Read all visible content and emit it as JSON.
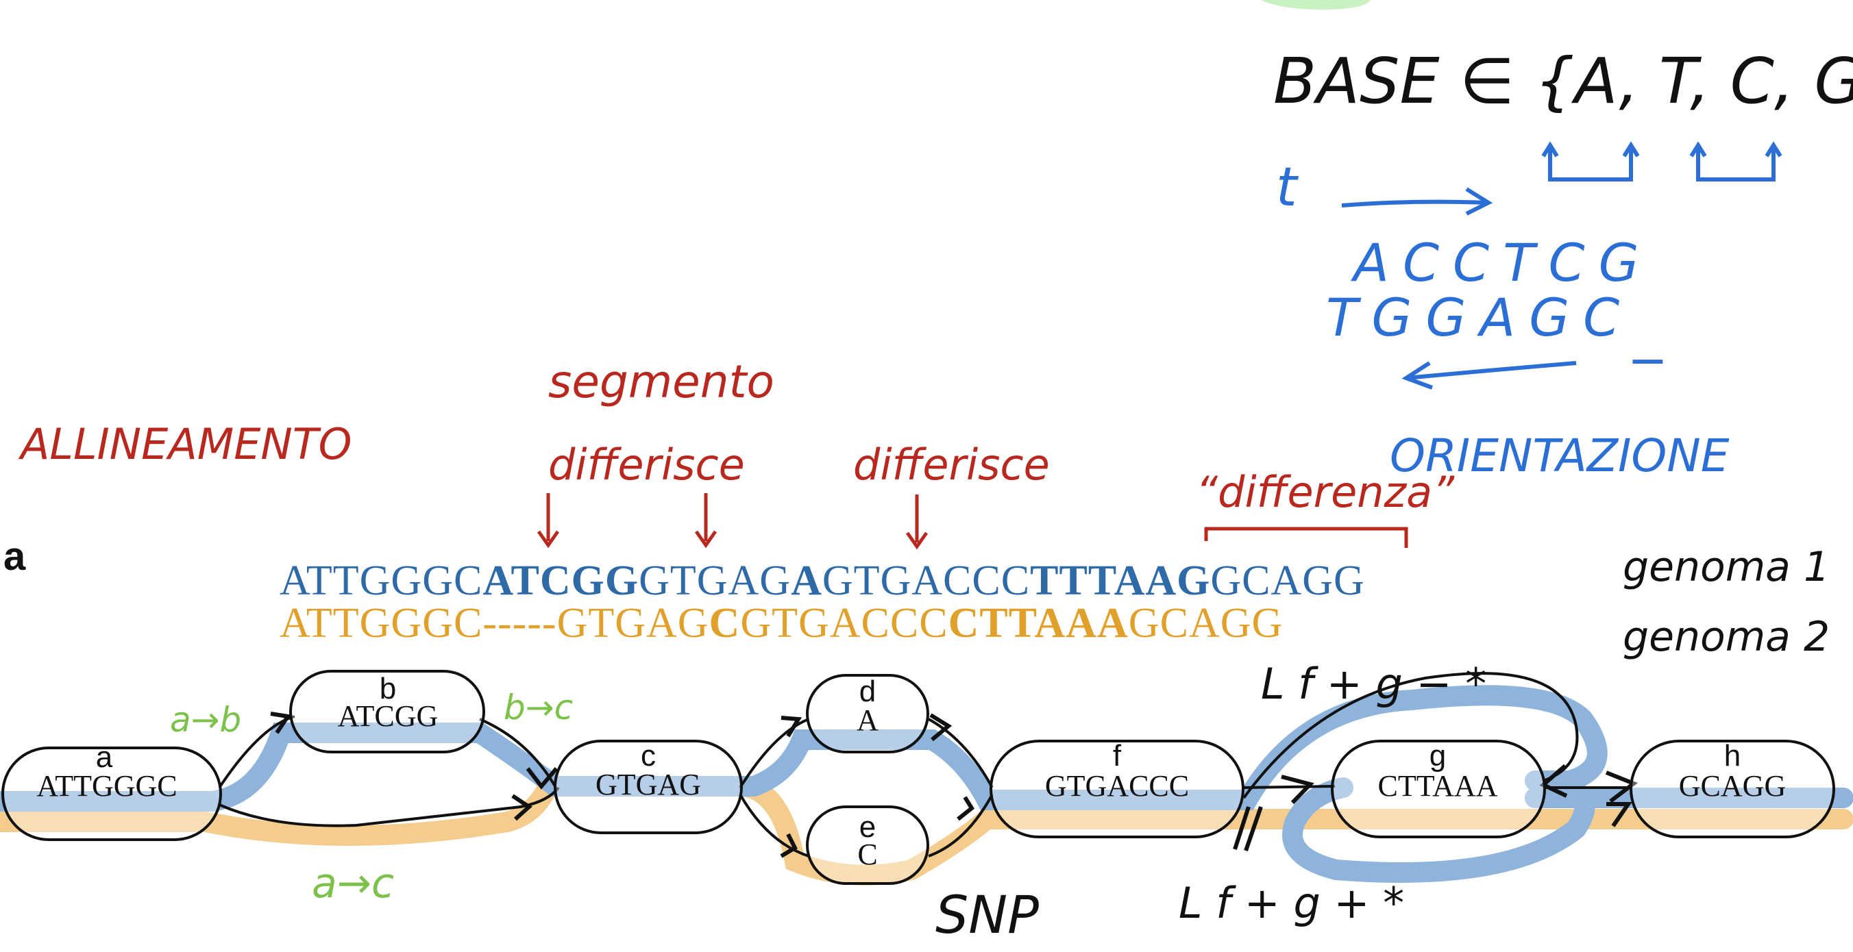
{
  "colors": {
    "blue_path": "#8fb4dc",
    "orange_path": "#f3cc8e",
    "genome1_text": "#2e6aa8",
    "genome2_text": "#e0a02a",
    "annot_red": "#b8281e",
    "annot_blue": "#2b6fd6",
    "annot_green": "#7cc24a",
    "ink": "#111111"
  },
  "annotations": {
    "base_set": "BASE ∈ {A, T, C, G}",
    "time": "t",
    "seq_forward": "ACCTCG",
    "seq_reverse": "TGGAGC",
    "minus": "−",
    "orientazione": "ORIENTAZIONE",
    "allineamento": "ALLINEAMENTO",
    "segmento": "segmento",
    "differisce1": "differisce",
    "differisce2": "differisce",
    "differenza": "“differenza”",
    "genome1": "genoma 1",
    "genome2": "genoma 2",
    "lf_g_minus": "L f + g − *",
    "lf_g_plus": "L f + g + *",
    "snp": "SNP",
    "edge_ab": "a→b",
    "edge_bc": "b→c",
    "edge_ac": "a→c"
  },
  "panel_label": "a",
  "alignment": {
    "genome1": [
      {
        "t": "ATTGGGC",
        "b": false
      },
      {
        "t": "ATCGG",
        "b": true
      },
      {
        "t": "GTGAG",
        "b": false
      },
      {
        "t": "A",
        "b": true
      },
      {
        "t": "GTGACCC",
        "b": false
      },
      {
        "t": "TTTAAG",
        "b": true
      },
      {
        "t": "GCAGG",
        "b": false
      }
    ],
    "genome2": [
      {
        "t": "ATTGGGC",
        "b": false
      },
      {
        "t": "-----",
        "b": false
      },
      {
        "t": "GTGAG",
        "b": false
      },
      {
        "t": "C",
        "b": true
      },
      {
        "t": "GTGACCC",
        "b": false
      },
      {
        "t": "CTTAAA",
        "b": true
      },
      {
        "t": "GCAGG",
        "b": false
      }
    ]
  },
  "graph_nodes": [
    {
      "id": "a",
      "seq": "ATTGGGC"
    },
    {
      "id": "b",
      "seq": "ATCGG"
    },
    {
      "id": "c",
      "seq": "GTGAG"
    },
    {
      "id": "d",
      "seq": "A"
    },
    {
      "id": "e",
      "seq": "C"
    },
    {
      "id": "f",
      "seq": "GTGACCC"
    },
    {
      "id": "g",
      "seq": "CTTAAA"
    },
    {
      "id": "h",
      "seq": "GCAGG"
    }
  ]
}
